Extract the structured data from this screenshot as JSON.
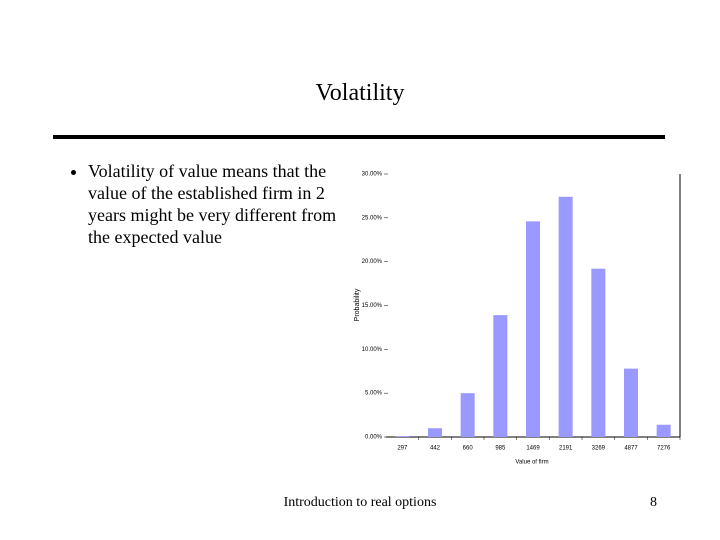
{
  "slide": {
    "title": "Volatility",
    "bullets": [
      "Volatility of value means that the value of the established firm in 2 years might be very different from the expected value"
    ],
    "footer": "Introduction to real options",
    "page_number": "8"
  },
  "chart_data": {
    "type": "bar",
    "x_label": "Value of firm",
    "y_label": "Probability",
    "categories": [
      "297",
      "442",
      "660",
      "985",
      "1469",
      "2191",
      "3269",
      "4877",
      "7276"
    ],
    "values": [
      0.1,
      1.0,
      5.0,
      13.9,
      24.6,
      27.4,
      19.2,
      7.8,
      1.4
    ],
    "color": "#9999ff",
    "ylim": [
      0,
      30
    ],
    "yticks": [
      {
        "value": 0,
        "label": "0.00%"
      },
      {
        "value": 5,
        "label": "5.00%"
      },
      {
        "value": 10,
        "label": "10.00%"
      },
      {
        "value": 15,
        "label": "15.00%"
      },
      {
        "value": 20,
        "label": "20.00%"
      },
      {
        "value": 25,
        "label": "25.00%"
      },
      {
        "value": 30,
        "label": "30.00%"
      }
    ],
    "grid": false
  }
}
